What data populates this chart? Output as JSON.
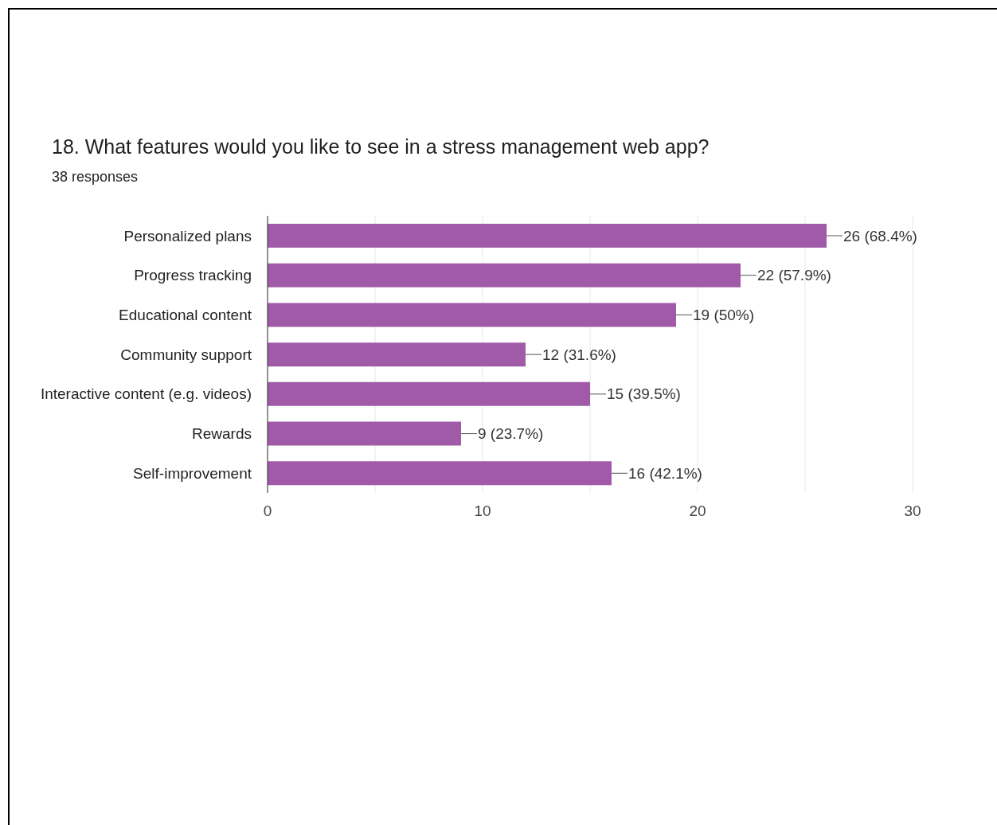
{
  "chart_data": {
    "type": "bar",
    "orientation": "horizontal",
    "title": "18. What features would you like to see in a stress management web app?",
    "subtitle": "38 responses",
    "categories": [
      "Personalized plans",
      "Progress tracking",
      "Educational content",
      "Community support",
      "Interactive content (e.g. videos)",
      "Rewards",
      "Self-improvement"
    ],
    "values": [
      26,
      22,
      19,
      12,
      15,
      9,
      16
    ],
    "value_labels": [
      "26 (68.4%)",
      "22 (57.9%)",
      "19 (50%)",
      "12 (31.6%)",
      "15 (39.5%)",
      "9 (23.7%)",
      "16 (42.1%)"
    ],
    "color": "#a05aa8",
    "xlim": [
      0,
      30
    ],
    "xticks": [
      0,
      {
        "value": 5,
        "label": null
      },
      10,
      {
        "value": 15,
        "label": null
      },
      20,
      {
        "value": 25,
        "label": null
      },
      30
    ],
    "grid": "x"
  }
}
